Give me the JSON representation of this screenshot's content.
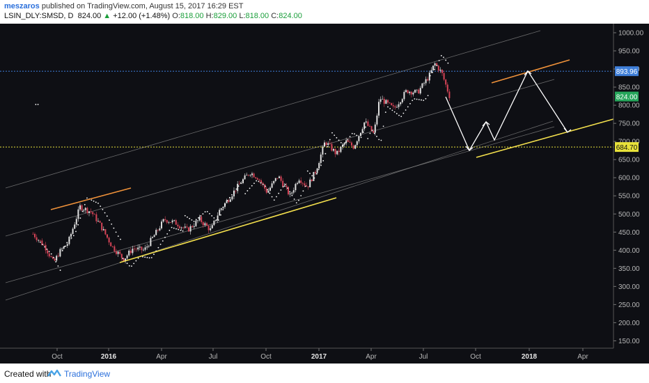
{
  "header": {
    "author": "meszaros",
    "published_text": "published on TradingView.com, August 15, 2017 16:29 EST",
    "symbol": "LSIN_DLY:SMSD, D",
    "last": "824.00",
    "change": "+12.00 (+1.48%)",
    "o_label": "O:",
    "o_value": "818.00",
    "h_label": "H:",
    "h_value": "829.00",
    "l_label": "L:",
    "l_value": "818.00",
    "c_label": "C:",
    "c_value": "824.00"
  },
  "footer": {
    "created_with": "Created with",
    "brand": "TradingView"
  },
  "colors": {
    "background": "#0e0f14",
    "candle_up": "#e0e0e0",
    "candle_down": "#d64457",
    "channel": "#8a8a8a",
    "support": "#f4e04d",
    "resistance": "#f0923a",
    "projection": "#ffffff",
    "label_893": "#3f7fd9",
    "label_824": "#26a65b",
    "label_684": "#e8e23a"
  },
  "chart_data": {
    "type": "candlestick",
    "y_axis": {
      "ticks": [
        "1000.00",
        "950.00",
        "900.00",
        "850.00",
        "800.00",
        "750.00",
        "700.00",
        "650.00",
        "600.00",
        "550.00",
        "500.00",
        "450.00",
        "400.00",
        "350.00",
        "300.00",
        "250.00",
        "200.00",
        "150.00"
      ],
      "range": [
        130,
        1010
      ]
    },
    "x_axis": {
      "ticks": [
        "Oct",
        "2016",
        "Apr",
        "Jul",
        "Oct",
        "2017",
        "Apr",
        "Jul",
        "Oct",
        "2018",
        "Apr"
      ],
      "bold": [
        "2016",
        "2017",
        "2018"
      ]
    },
    "price_labels": [
      {
        "value": 893.96,
        "text": "893.96",
        "color": "#3f7fd9"
      },
      {
        "value": 824.0,
        "text": "824.00",
        "color": "#26a65b"
      },
      {
        "value": 684.7,
        "text": "684.70",
        "color": "#e8e23a"
      }
    ],
    "horizontal_lines": [
      {
        "value": 893.96,
        "color": "#3f7fd9",
        "style": "dotted"
      },
      {
        "value": 684.7,
        "color": "#e8e23a",
        "style": "dotted"
      }
    ],
    "price_path": [
      [
        "2015-08-20",
        445
      ],
      [
        "2015-09-10",
        410
      ],
      [
        "2015-09-25",
        365
      ],
      [
        "2015-10-05",
        395
      ],
      [
        "2015-10-20",
        420
      ],
      [
        "2015-11-10",
        520
      ],
      [
        "2015-11-30",
        505
      ],
      [
        "2015-12-15",
        470
      ],
      [
        "2016-01-05",
        410
      ],
      [
        "2016-01-25",
        375
      ],
      [
        "2016-02-10",
        405
      ],
      [
        "2016-03-01",
        400
      ],
      [
        "2016-03-20",
        445
      ],
      [
        "2016-04-05",
        485
      ],
      [
        "2016-04-25",
        475
      ],
      [
        "2016-05-15",
        455
      ],
      [
        "2016-06-05",
        485
      ],
      [
        "2016-06-25",
        455
      ],
      [
        "2016-07-10",
        510
      ],
      [
        "2016-07-25",
        540
      ],
      [
        "2016-08-15",
        585
      ],
      [
        "2016-09-01",
        615
      ],
      [
        "2016-09-15",
        600
      ],
      [
        "2016-10-01",
        560
      ],
      [
        "2016-10-20",
        605
      ],
      [
        "2016-11-10",
        550
      ],
      [
        "2016-11-25",
        600
      ],
      [
        "2016-12-10",
        575
      ],
      [
        "2016-12-25",
        620
      ],
      [
        "2017-01-10",
        700
      ],
      [
        "2017-01-30",
        665
      ],
      [
        "2017-02-15",
        700
      ],
      [
        "2017-03-01",
        685
      ],
      [
        "2017-03-20",
        755
      ],
      [
        "2017-04-05",
        720
      ],
      [
        "2017-04-15",
        820
      ],
      [
        "2017-05-10",
        790
      ],
      [
        "2017-06-01",
        840
      ],
      [
        "2017-06-20",
        835
      ],
      [
        "2017-07-10",
        880
      ],
      [
        "2017-07-20",
        915
      ],
      [
        "2017-08-01",
        890
      ],
      [
        "2017-08-15",
        824
      ]
    ]
  }
}
